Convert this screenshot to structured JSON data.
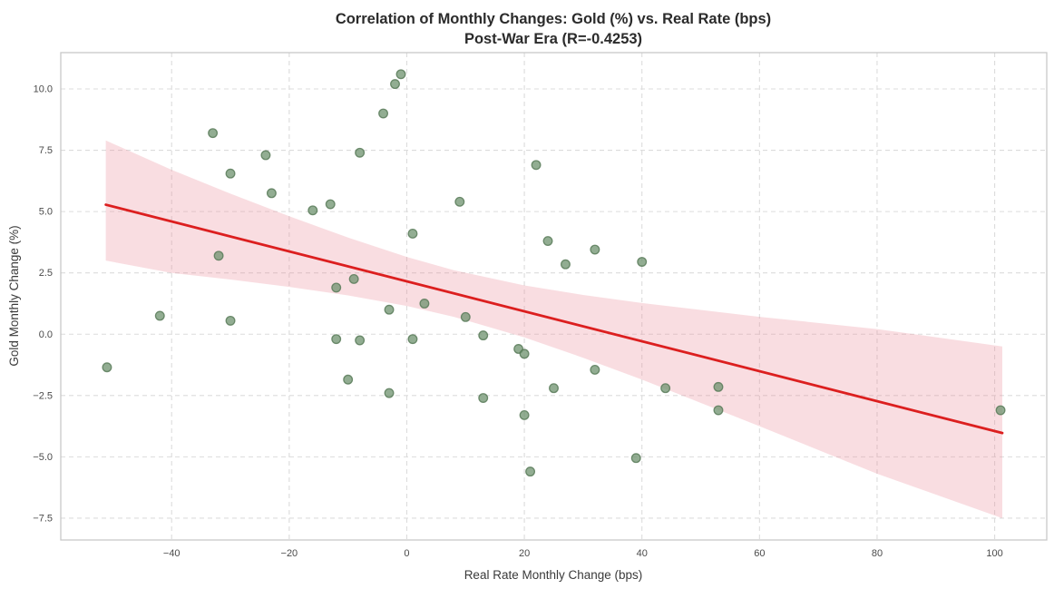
{
  "chart_data": {
    "type": "scatter",
    "title_line1": "Correlation of Monthly Changes: Gold (%) vs. Real Rate (bps)",
    "title_line2": "Post-War Era (R=-0.4253)",
    "r_value": -0.4253,
    "xlabel": "Real Rate Monthly Change (bps)",
    "ylabel": "Gold Monthly Change (%)",
    "xlim": [
      -58.86,
      108.86
    ],
    "ylim": [
      -8.39,
      11.48
    ],
    "x_ticks": [
      -40,
      -20,
      0,
      20,
      40,
      60,
      80,
      100
    ],
    "y_ticks": [
      10.0,
      7.5,
      5.0,
      2.5,
      0.0,
      -2.5,
      -5.0,
      -7.5
    ],
    "grid": true,
    "legend": "none",
    "points": [
      [
        -51,
        -1.35
      ],
      [
        -42,
        0.75
      ],
      [
        -33,
        8.2
      ],
      [
        -32,
        3.2
      ],
      [
        -30,
        6.55
      ],
      [
        -30,
        0.55
      ],
      [
        -24,
        7.3
      ],
      [
        -23,
        5.75
      ],
      [
        -16,
        5.05
      ],
      [
        -13,
        5.3
      ],
      [
        -12,
        1.9
      ],
      [
        -12,
        -0.2
      ],
      [
        -10,
        -1.85
      ],
      [
        -9,
        2.25
      ],
      [
        -8,
        7.4
      ],
      [
        -8,
        -0.25
      ],
      [
        -4,
        9.0
      ],
      [
        -3,
        1.0
      ],
      [
        -3,
        -2.4
      ],
      [
        -2,
        10.2
      ],
      [
        -1,
        10.6
      ],
      [
        1,
        4.1
      ],
      [
        1,
        -0.2
      ],
      [
        3,
        1.25
      ],
      [
        9,
        5.4
      ],
      [
        10,
        0.7
      ],
      [
        13,
        -0.05
      ],
      [
        13,
        -2.6
      ],
      [
        19,
        -0.6
      ],
      [
        20,
        -0.8
      ],
      [
        20,
        -3.3
      ],
      [
        21,
        -5.6
      ],
      [
        22,
        6.9
      ],
      [
        24,
        3.8
      ],
      [
        25,
        -2.2
      ],
      [
        27,
        2.85
      ],
      [
        32,
        3.45
      ],
      [
        32,
        -1.45
      ],
      [
        39,
        -5.05
      ],
      [
        40,
        2.95
      ],
      [
        44,
        -2.2
      ],
      [
        53,
        -2.15
      ],
      [
        53,
        -3.1
      ],
      [
        101,
        -3.1
      ]
    ],
    "regression": {
      "slope": -0.0611,
      "intercept": 2.15,
      "x_start": -51.2,
      "y_start": 5.28,
      "x_end": 101.3,
      "y_end": -4.03
    },
    "confidence_band": [
      {
        "x": -51.2,
        "lower": 3.0,
        "upper": 7.9
      },
      {
        "x": -40,
        "lower": 2.5,
        "upper": 6.7
      },
      {
        "x": -30,
        "lower": 2.23,
        "upper": 5.73
      },
      {
        "x": -20,
        "lower": 1.93,
        "upper": 4.81
      },
      {
        "x": -10,
        "lower": 1.58,
        "upper": 3.94
      },
      {
        "x": 0,
        "lower": 1.15,
        "upper": 3.15
      },
      {
        "x": 8,
        "lower": 0.71,
        "upper": 2.61
      },
      {
        "x": 20,
        "lower": -0.13,
        "upper": 1.99
      },
      {
        "x": 30,
        "lower": -0.96,
        "upper": 1.6
      },
      {
        "x": 40,
        "lower": -1.85,
        "upper": 1.27
      },
      {
        "x": 60,
        "lower": -3.75,
        "upper": 0.71
      },
      {
        "x": 80,
        "lower": -5.69,
        "upper": 0.21
      },
      {
        "x": 101.3,
        "lower": -7.5,
        "upper": -0.5
      }
    ],
    "colors": {
      "point_fill": "#6E916E",
      "point_edge": "#587a58",
      "regression_line": "#dc1f1f",
      "band_fill": "#ec8f9c",
      "grid": "#dcdcdc",
      "spine": "#c8c8c8",
      "background": "#ffffff"
    }
  }
}
